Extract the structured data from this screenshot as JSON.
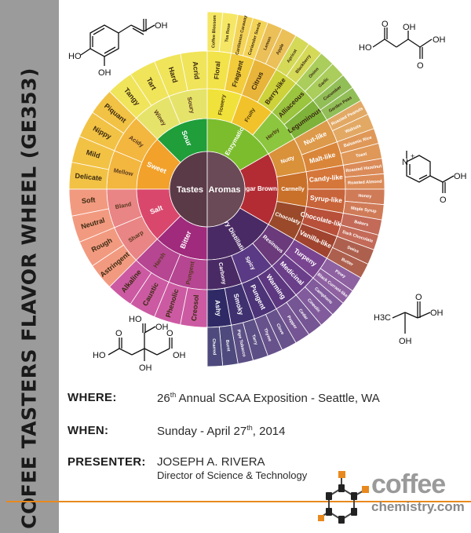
{
  "sidebar": {
    "title": "COFEE TASTERS FLAVOR WHEEL (GE353)"
  },
  "wheel": {
    "center": {
      "left": "Tastes",
      "right": "Aromas"
    },
    "tastes_inner": [
      "Sour",
      "Sweet",
      "Salt",
      "Bitter"
    ],
    "aromas_inner": [
      "Enzymatic",
      "Sugar Browning",
      "Dry Distillation"
    ],
    "tastes_middle": [
      "Soury",
      "Winey",
      "Acidy",
      "Mellow",
      "Bland",
      "Sharp",
      "Harsh",
      "Pungent"
    ],
    "aromas_middle": [
      "Flowery",
      "Fruity",
      "Herby",
      "Nutty",
      "Carmelly",
      "Chocolaty",
      "Resinous",
      "Spicy",
      "Carbony"
    ],
    "tastes_outer": [
      "Acrid",
      "Hard",
      "Tart",
      "Tangy",
      "Piquant",
      "Nippy",
      "Mild",
      "Delicate",
      "Soft",
      "Neutral",
      "Rough",
      "Astringent",
      "Alkaline",
      "Caustic",
      "Phenolic",
      "Creosol"
    ],
    "aromas_outer": [
      "Floral",
      "Fragrant",
      "Citrus",
      "Berry-like",
      "Alliaceous",
      "Leguminous",
      "Nut-like",
      "Malt-like",
      "Candy-like",
      "Syrup-like",
      "Chocolate-like",
      "Vanilla-like",
      "Turpeny",
      "Medicinal",
      "Warming",
      "Pungent",
      "Smoky",
      "Ashy"
    ],
    "aromas_descriptors": [
      "Coffee Blossom",
      "Tea Rose",
      "Cardamon Caraway",
      "Coriander Seeds",
      "Lemon",
      "Apple",
      "Apricot",
      "Blackberry",
      "Onion",
      "Garlic",
      "Cucumber",
      "Garden Peas",
      "Roasted Peanuts",
      "Walnuts",
      "Balsamic Rice",
      "Toast",
      "Roasted Hazelnut",
      "Roasted Almond",
      "Honey",
      "Maple Syrup",
      "Bakers",
      "Dark Chocolate",
      "Swiss",
      "Butter",
      "Piney",
      "Black Currant-like",
      "Camphoric",
      "Cineolic",
      "Cedar",
      "Pepper",
      "Clove",
      "Thyme",
      "Tarry",
      "Pipe Tobacco",
      "Burnt",
      "Charred"
    ]
  },
  "molecules": {
    "caffeic": [
      "OH",
      "HO",
      "OH"
    ],
    "malic": [
      "OH",
      "HO",
      "OH",
      "O",
      "O"
    ],
    "trigonelline": [
      "N",
      "+",
      "OH",
      "O"
    ],
    "lactic": [
      "H3C",
      "OH",
      "OH",
      "O"
    ],
    "citric": [
      "HO",
      "OH",
      "OH",
      "HO",
      "OH",
      "O",
      "O",
      "O"
    ]
  },
  "info": {
    "where_label": "WHERE:",
    "where_num": "26",
    "where_sup": "th",
    "where_rest": " Annual SCAA Exposition - Seattle, WA",
    "when_label": "WHEN:",
    "when_pre": "Sunday - April 27",
    "when_sup": "th",
    "when_post": ", 2014",
    "presenter_label": "PRESENTER:",
    "presenter_name": "JOSEPH A. RIVERA",
    "presenter_title": "Director of Science & Technology"
  },
  "logo": {
    "line1": "coffee",
    "line2": "chemistry.com"
  },
  "colors": {
    "sidebar": "#9b9b9b",
    "accent": "#e8891e",
    "center": "#5b3a47",
    "sour": "#1f9e3a",
    "sweet": "#f2a12b",
    "salt": "#d9486c",
    "bitter": "#a02a7c",
    "enzymatic": "#7cbd2e",
    "sugar_browning": "#b32c34",
    "dry_distillation": "#4a2a64"
  }
}
